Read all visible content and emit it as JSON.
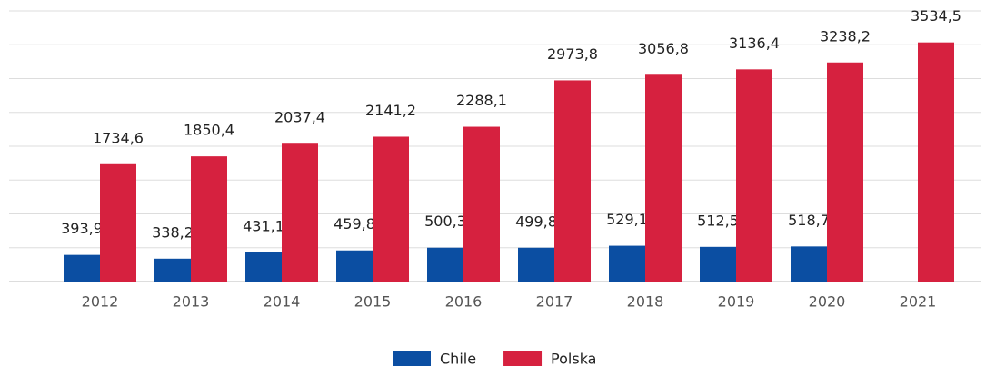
{
  "chart_data": {
    "type": "bar",
    "categories": [
      "2012",
      "2013",
      "2014",
      "2015",
      "2016",
      "2017",
      "2018",
      "2019",
      "2020",
      "2021"
    ],
    "series": [
      {
        "name": "Chile",
        "color": "#0b4ea2",
        "values": [
          393.9,
          338.2,
          431.1,
          459.8,
          500.3,
          499.8,
          529.1,
          512.5,
          518.7,
          null
        ],
        "value_labels": [
          "393,9",
          "338,2",
          "431,1",
          "459,8",
          "500,3",
          "499,8",
          "529,1",
          "512,5",
          "518,7",
          null
        ]
      },
      {
        "name": "Polska",
        "color": "#d6213f",
        "values": [
          1734.6,
          1850.4,
          2037.4,
          2141.2,
          2288.1,
          2973.8,
          3056.8,
          3136.4,
          3238.2,
          3534.5
        ],
        "value_labels": [
          "1734,6",
          "1850,4",
          "2037,4",
          "2141,2",
          "2288,1",
          "2973,8",
          "3056,8",
          "3136,4",
          "3238,2",
          "3534,5"
        ]
      }
    ],
    "ylim": [
      0,
      4000
    ],
    "yticks": [
      0,
      500,
      1000,
      1500,
      2000,
      2500,
      3000,
      3500,
      4000
    ],
    "grid": true
  }
}
